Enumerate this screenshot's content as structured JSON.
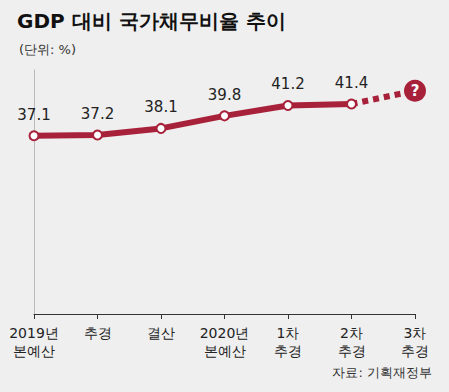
{
  "chart_data": {
    "type": "line",
    "title": "GDP 대비 국가채무비율 추이",
    "subtitle": "(단위: %)",
    "source": "자료: 기획재정부",
    "categories": [
      "2019년\n본예산",
      "추경",
      "결산",
      "2020년\n본예산",
      "1차\n추경",
      "2차\n추경",
      "3차\n추경"
    ],
    "series": [
      {
        "values": [
          37.1,
          37.2,
          38.1,
          39.8,
          41.2,
          41.4,
          null
        ],
        "line_style": "solid",
        "color": "#a8213a"
      },
      {
        "values": [
          null,
          null,
          null,
          null,
          null,
          41.4,
          43.2
        ],
        "line_style": "dashed",
        "color": "#a8213a"
      }
    ],
    "annotations": [
      {
        "text": "?",
        "index": 6,
        "value": 43.2
      }
    ],
    "ylim": [
      13,
      46
    ],
    "grid": false,
    "data_labels": true,
    "tick_labels": "x"
  }
}
